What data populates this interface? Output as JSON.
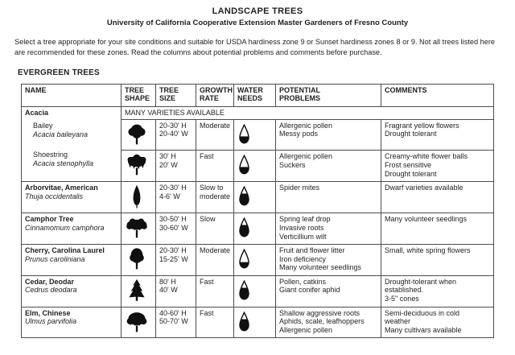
{
  "page": {
    "title": "LANDSCAPE TREES",
    "subtitle": "University of California Cooperative Extension Master Gardeners of Fresno County",
    "intro": "Select a tree appropriate for your site conditions and suitable for USDA hardiness zone 9 or Sunset hardiness zones 8 or 9. Not all trees listed here are recommended for these zones. Read the columns about potential problems and comments before purchase.",
    "section_heading": "EVERGREEN TREES"
  },
  "table": {
    "headers": [
      [
        "NAME"
      ],
      [
        "TREE",
        "SHAPE"
      ],
      [
        "TREE",
        "SIZE"
      ],
      [
        "GROWTH",
        "RATE"
      ],
      [
        "WATER",
        "NEEDS"
      ],
      [
        "POTENTIAL",
        "PROBLEMS"
      ],
      [
        "COMMENTS"
      ]
    ],
    "group": {
      "genus": "Acacia",
      "note": "MANY VARIETIES AVAILABLE"
    },
    "rows": [
      {
        "name": "Bailey",
        "species": "Acacia baileyana",
        "shape_icon": "round-canopy-tree-icon",
        "size": [
          "20-30' H",
          "20-40' W"
        ],
        "growth": "Moderate",
        "water_fill": 0.35,
        "problems": [
          "Allergenic pollen",
          "Messy pods"
        ],
        "comments": [
          "Fragrant yellow flowers",
          "Drought tolerant"
        ]
      },
      {
        "name": "Shoestring",
        "species": "Acacia stenophylla",
        "shape_icon": "weeping-canopy-tree-icon",
        "size": [
          "30' H",
          "20' W"
        ],
        "growth": "Fast",
        "water_fill": 0.35,
        "problems": [
          "Allergenic pollen",
          "Suckers"
        ],
        "comments": [
          "Creamy-white flower balls",
          "Frost sensitive",
          "Drought tolerant"
        ]
      },
      {
        "name": "Arborvitae, American",
        "species": "Thuja occidentalis",
        "shape_icon": "columnar-tree-icon",
        "size": [
          "20-30' H",
          "4-6' W"
        ],
        "growth": "Slow to moderate",
        "water_fill": 0.6,
        "problems": [
          "Spider mites"
        ],
        "comments": [
          "Dwarf varieties available"
        ]
      },
      {
        "name": "Camphor Tree",
        "species": "Cinnamomum camphora",
        "shape_icon": "spreading-canopy-tree-icon",
        "size": [
          "30-50' H",
          "30-60' W"
        ],
        "growth": "Slow",
        "water_fill": 0.6,
        "problems": [
          "Spring leaf drop",
          "Invasive roots",
          "Verticillium wilt"
        ],
        "comments": [
          "Many volunteer seedlings"
        ]
      },
      {
        "name": "Cherry, Carolina Laurel",
        "species": "Prunus caroliniana",
        "shape_icon": "oval-canopy-tree-icon",
        "size": [
          "20-30' H",
          "15-25' W"
        ],
        "growth": "Moderate",
        "water_fill": 0.3,
        "problems": [
          "Fruit and flower litter",
          "Iron deficiency",
          "Many volunteer seedlings"
        ],
        "comments": [
          "Small, white spring flowers"
        ]
      },
      {
        "name": "Cedar, Deodar",
        "species": "Cedrus deodara",
        "shape_icon": "conifer-tree-icon",
        "size": [
          "80' H",
          "40' W"
        ],
        "growth": "Fast",
        "water_fill": 0.6,
        "problems": [
          "Pollen, catkins",
          "Giant conifer aphid"
        ],
        "comments": [
          "Drought-tolerant when",
          "established.",
          "3-5\" cones"
        ]
      },
      {
        "name": "Elm, Chinese",
        "species": "Ulmus parvifolia",
        "shape_icon": "broad-canopy-tree-icon",
        "size": [
          "40-60' H",
          "50-70' W"
        ],
        "growth": "Fast",
        "water_fill": 0.6,
        "problems": [
          "Shallow aggressive roots",
          "Aphids, scale, leafhoppers",
          "Allergenic pollen"
        ],
        "comments": [
          "Semi-deciduous in cold",
          "weather",
          "Many cultivars available"
        ]
      }
    ]
  }
}
